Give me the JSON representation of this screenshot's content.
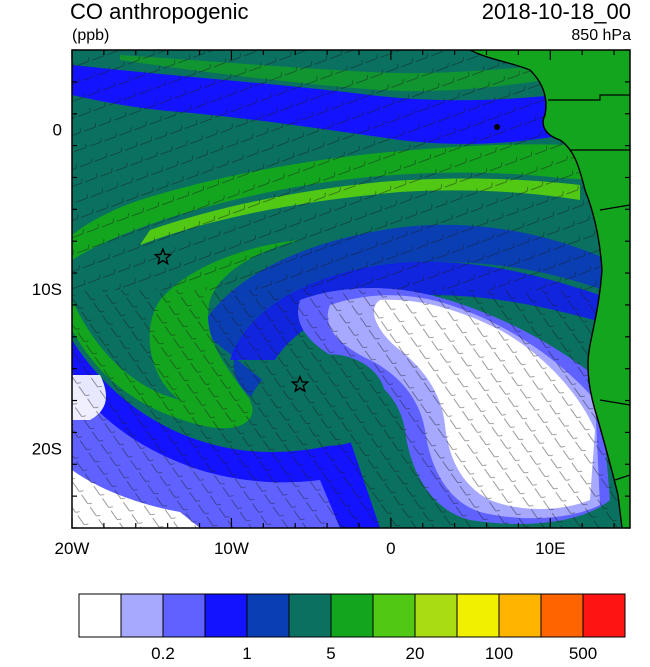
{
  "header": {
    "title": "CO anthropogenic",
    "units": "(ppb)",
    "datetime": "2018-10-18_00",
    "level": "850 hPa"
  },
  "map": {
    "lon_range": [
      -20,
      15
    ],
    "lat_range": [
      -25,
      5
    ],
    "x_ticks": [
      {
        "value": -20,
        "label": "20W"
      },
      {
        "value": -10,
        "label": "10W"
      },
      {
        "value": 0,
        "label": "0"
      },
      {
        "value": 10,
        "label": "10E"
      }
    ],
    "y_ticks": [
      {
        "value": 0,
        "label": "0"
      },
      {
        "value": -10,
        "label": "10S"
      },
      {
        "value": -20,
        "label": "20S"
      }
    ],
    "markers": [
      {
        "type": "star",
        "lon": -14.3,
        "lat": -8.0
      },
      {
        "type": "star",
        "lon": -5.7,
        "lat": -16.0
      }
    ]
  },
  "colorbar": {
    "colors": [
      "#ffffff",
      "#a7a8ff",
      "#6062ff",
      "#1313ff",
      "#0a3fb4",
      "#0a7060",
      "#14a51e",
      "#50c814",
      "#aadc14",
      "#f0f000",
      "#ffb400",
      "#ff6400",
      "#ff1414"
    ],
    "labels": [
      {
        "after_box": 2,
        "text": "0.2"
      },
      {
        "after_box": 4,
        "text": "1"
      },
      {
        "after_box": 6,
        "text": "5"
      },
      {
        "after_box": 8,
        "text": "20"
      },
      {
        "after_box": 10,
        "text": "100"
      },
      {
        "after_box": 12,
        "text": "500"
      }
    ]
  }
}
